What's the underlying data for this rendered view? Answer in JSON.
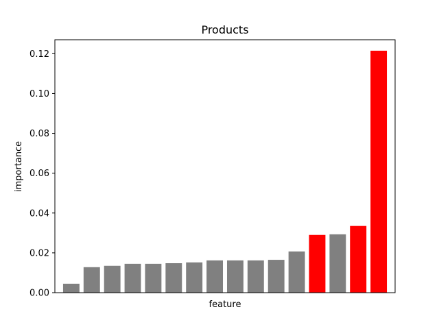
{
  "chart_data": {
    "type": "bar",
    "title": "Products",
    "xlabel": "feature",
    "ylabel": "importance",
    "ylim": [
      0,
      0.127
    ],
    "yticks": [
      0.0,
      0.02,
      0.04,
      0.06,
      0.08,
      0.1,
      0.12
    ],
    "ytick_labels": [
      "0.00",
      "0.02",
      "0.04",
      "0.06",
      "0.08",
      "0.10",
      "0.12"
    ],
    "x_ticks_visible": false,
    "grid": false,
    "colors": {
      "default": "#808080",
      "highlight": "#ff0000"
    },
    "values": [
      0.0045,
      0.0128,
      0.0135,
      0.0145,
      0.0145,
      0.0148,
      0.0152,
      0.0162,
      0.0162,
      0.0162,
      0.0165,
      0.0207,
      0.029,
      0.0293,
      0.0335,
      0.1215
    ],
    "highlighted": [
      false,
      false,
      false,
      false,
      false,
      false,
      false,
      false,
      false,
      false,
      false,
      false,
      true,
      false,
      true,
      true
    ]
  }
}
